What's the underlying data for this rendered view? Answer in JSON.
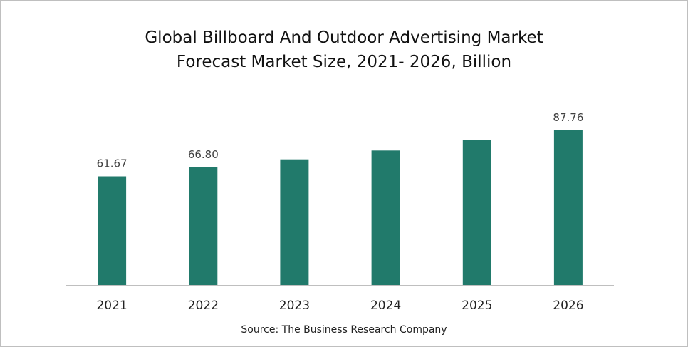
{
  "chart_data": {
    "type": "bar",
    "title_line1": "Global Billboard And Outdoor Advertising Market",
    "title_line2": "Forecast Market Size, 2021- 2026, Billion",
    "categories": [
      "2021",
      "2022",
      "2023",
      "2024",
      "2025",
      "2026"
    ],
    "values": [
      61.67,
      66.8,
      71.3,
      76.3,
      82.1,
      87.76
    ],
    "data_labels": [
      "61.67",
      "66.80",
      "",
      "",
      "",
      "87.76"
    ],
    "ylim": [
      0,
      100
    ],
    "grid": false,
    "bar_color": "#217a6b",
    "source": "Source: The Business Research Company"
  }
}
